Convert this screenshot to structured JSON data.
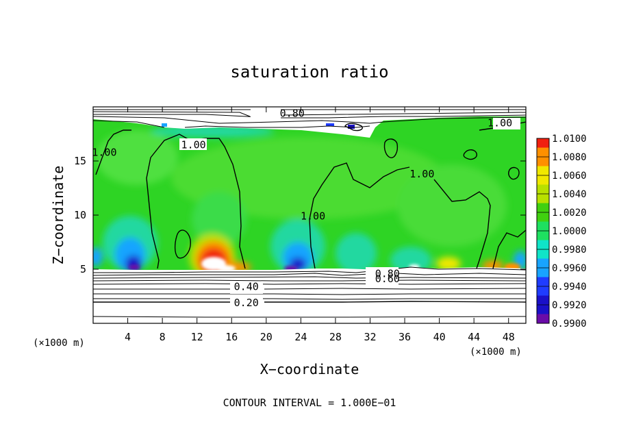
{
  "chart_data": {
    "type": "heatmap",
    "title": "saturation ratio",
    "xlabel": "X−coordinate",
    "ylabel": "Z−coordinate",
    "x_unit": "(×1000 m)",
    "x_unit_right": "(×1000 m)",
    "xlim": [
      0,
      50
    ],
    "ylim": [
      0,
      20
    ],
    "x_ticks": [
      4,
      8,
      12,
      16,
      20,
      24,
      28,
      32,
      36,
      40,
      44,
      48
    ],
    "y_ticks": [
      5,
      10,
      15
    ],
    "colorbar": {
      "values": [
        0.99,
        0.992,
        0.994,
        0.996,
        0.998,
        1.0,
        1.002,
        1.004,
        1.006,
        1.008,
        1.01
      ],
      "labels": [
        "0.9900",
        "0.9920",
        "0.9940",
        "0.9960",
        "0.9980",
        "1.0000",
        "1.0020",
        "1.0040",
        "1.0060",
        "1.0080",
        "1.0100"
      ],
      "colors": [
        "#6a0ca8",
        "#1a10c8",
        "#1f3cff",
        "#18a4ff",
        "#10e4c8",
        "#1ee060",
        "#40d010",
        "#b8e000",
        "#f0e800",
        "#ff9000",
        "#f02010",
        "#f0a0a0"
      ]
    },
    "contour_labels": [
      {
        "text": "0.80",
        "x": 23,
        "y": 19.4
      },
      {
        "text": "1.00",
        "x": 47,
        "y": 18.5
      },
      {
        "text": "1.00",
        "x": 1.3,
        "y": 15.8
      },
      {
        "text": "1.00",
        "x": 11.6,
        "y": 16.5
      },
      {
        "text": "1.00",
        "x": 38,
        "y": 13.8
      },
      {
        "text": "1.00",
        "x": 25.4,
        "y": 9.9
      },
      {
        "text": "0.80",
        "x": 34.0,
        "y": 4.6
      },
      {
        "text": "0.60",
        "x": 34.0,
        "y": 4.1
      },
      {
        "text": "0.40",
        "x": 17.7,
        "y": 3.4
      },
      {
        "text": "0.20",
        "x": 17.7,
        "y": 1.9
      }
    ],
    "footer": "CONTOUR INTERVAL = 1.000E−01"
  }
}
